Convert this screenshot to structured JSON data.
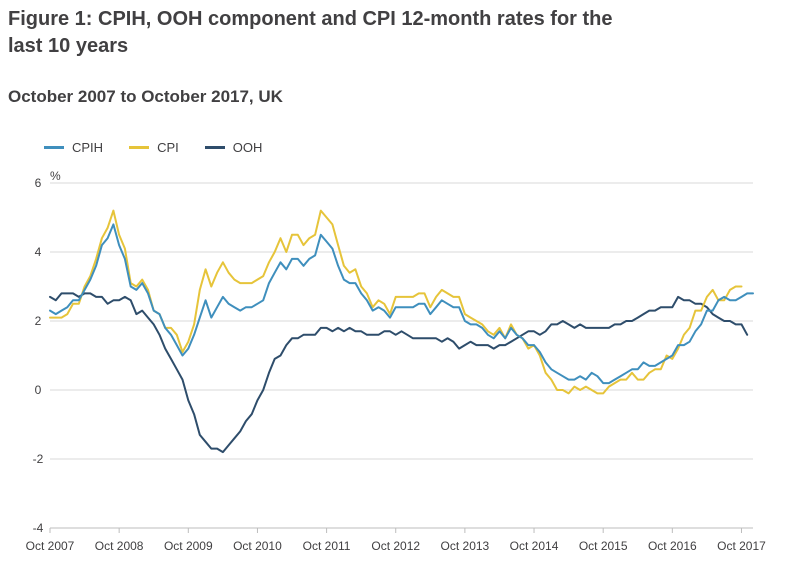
{
  "figure": {
    "title": "Figure 1: CPIH, OOH component and CPI 12-month rates for the last 10 years",
    "subtitle": "October 2007 to October 2017, UK"
  },
  "chart_data": {
    "type": "line",
    "title": "Figure 1: CPIH, OOH component and CPI 12-month rates for the last 10 years",
    "subtitle": "October 2007 to October 2017, UK",
    "ylabel": "%",
    "xlabel": "",
    "ylim": [
      -4,
      6
    ],
    "yticks": [
      -4,
      -2,
      0,
      2,
      4,
      6
    ],
    "xticks": [
      "Oct 2007",
      "Oct 2008",
      "Oct 2009",
      "Oct 2010",
      "Oct 2011",
      "Oct 2012",
      "Oct 2013",
      "Oct 2014",
      "Oct 2015",
      "Oct 2016",
      "Oct 2017"
    ],
    "x_start": "Oct 2007",
    "x_end": "Oct 2017",
    "x_frequency": "monthly",
    "grid": true,
    "legend_position": "top-left",
    "series": [
      {
        "name": "CPIH",
        "color": "#3f8fbd",
        "values": [
          2.3,
          2.2,
          2.3,
          2.4,
          2.6,
          2.6,
          2.9,
          3.2,
          3.6,
          4.2,
          4.4,
          4.8,
          4.2,
          3.8,
          3.0,
          2.9,
          3.1,
          2.8,
          2.3,
          2.2,
          1.8,
          1.6,
          1.3,
          1.0,
          1.2,
          1.6,
          2.1,
          2.6,
          2.1,
          2.4,
          2.7,
          2.5,
          2.4,
          2.3,
          2.4,
          2.4,
          2.5,
          2.6,
          3.1,
          3.4,
          3.7,
          3.5,
          3.8,
          3.8,
          3.6,
          3.8,
          3.9,
          4.5,
          4.3,
          4.1,
          3.6,
          3.2,
          3.1,
          3.1,
          2.8,
          2.6,
          2.3,
          2.4,
          2.3,
          2.1,
          2.4,
          2.4,
          2.4,
          2.4,
          2.5,
          2.5,
          2.2,
          2.4,
          2.6,
          2.5,
          2.4,
          2.4,
          2.0,
          1.9,
          1.9,
          1.8,
          1.6,
          1.5,
          1.7,
          1.5,
          1.8,
          1.6,
          1.5,
          1.3,
          1.3,
          1.1,
          0.8,
          0.6,
          0.5,
          0.4,
          0.3,
          0.3,
          0.4,
          0.3,
          0.5,
          0.4,
          0.2,
          0.2,
          0.3,
          0.4,
          0.5,
          0.6,
          0.6,
          0.8,
          0.7,
          0.7,
          0.8,
          0.9,
          1.0,
          1.3,
          1.3,
          1.4,
          1.7,
          1.9,
          2.3,
          2.3,
          2.6,
          2.7,
          2.6,
          2.6,
          2.7,
          2.8,
          2.8
        ]
      },
      {
        "name": "CPI",
        "color": "#e6c43a",
        "values": [
          2.1,
          2.1,
          2.1,
          2.2,
          2.5,
          2.5,
          3.0,
          3.3,
          3.8,
          4.4,
          4.7,
          5.2,
          4.5,
          4.1,
          3.1,
          3.0,
          3.2,
          2.9,
          2.3,
          2.2,
          1.8,
          1.8,
          1.6,
          1.1,
          1.4,
          1.9,
          2.9,
          3.5,
          3.0,
          3.4,
          3.7,
          3.4,
          3.2,
          3.1,
          3.1,
          3.1,
          3.2,
          3.3,
          3.7,
          4.0,
          4.4,
          4.0,
          4.5,
          4.5,
          4.2,
          4.4,
          4.5,
          5.2,
          5.0,
          4.8,
          4.2,
          3.6,
          3.4,
          3.5,
          3.0,
          2.8,
          2.4,
          2.6,
          2.5,
          2.2,
          2.7,
          2.7,
          2.7,
          2.7,
          2.8,
          2.8,
          2.4,
          2.7,
          2.9,
          2.8,
          2.7,
          2.7,
          2.2,
          2.1,
          2.0,
          1.9,
          1.7,
          1.6,
          1.8,
          1.5,
          1.9,
          1.6,
          1.5,
          1.2,
          1.3,
          1.0,
          0.5,
          0.3,
          0.0,
          0.0,
          -0.1,
          0.1,
          0.0,
          0.1,
          0.0,
          -0.1,
          -0.1,
          0.1,
          0.2,
          0.3,
          0.3,
          0.5,
          0.3,
          0.3,
          0.5,
          0.6,
          0.6,
          1.0,
          0.9,
          1.2,
          1.6,
          1.8,
          2.3,
          2.3,
          2.7,
          2.9,
          2.6,
          2.6,
          2.9,
          3.0,
          3.0
        ]
      },
      {
        "name": "OOH",
        "color": "#2e4d6b",
        "values": [
          2.7,
          2.6,
          2.8,
          2.8,
          2.8,
          2.7,
          2.8,
          2.8,
          2.7,
          2.7,
          2.5,
          2.6,
          2.6,
          2.7,
          2.6,
          2.2,
          2.3,
          2.1,
          1.9,
          1.6,
          1.2,
          0.9,
          0.6,
          0.3,
          -0.3,
          -0.7,
          -1.3,
          -1.5,
          -1.7,
          -1.7,
          -1.8,
          -1.6,
          -1.4,
          -1.2,
          -0.9,
          -0.7,
          -0.3,
          0.0,
          0.5,
          0.9,
          1.0,
          1.3,
          1.5,
          1.5,
          1.6,
          1.6,
          1.6,
          1.8,
          1.8,
          1.7,
          1.8,
          1.7,
          1.8,
          1.7,
          1.7,
          1.6,
          1.6,
          1.6,
          1.7,
          1.7,
          1.6,
          1.7,
          1.6,
          1.5,
          1.5,
          1.5,
          1.5,
          1.5,
          1.4,
          1.5,
          1.4,
          1.2,
          1.3,
          1.4,
          1.3,
          1.3,
          1.3,
          1.2,
          1.3,
          1.3,
          1.4,
          1.5,
          1.6,
          1.7,
          1.7,
          1.6,
          1.7,
          1.9,
          1.9,
          2.0,
          1.9,
          1.8,
          1.9,
          1.8,
          1.8,
          1.8,
          1.8,
          1.8,
          1.9,
          1.9,
          2.0,
          2.0,
          2.1,
          2.2,
          2.3,
          2.3,
          2.4,
          2.4,
          2.4,
          2.7,
          2.6,
          2.6,
          2.5,
          2.5,
          2.4,
          2.2,
          2.1,
          2.0,
          2.0,
          1.9,
          1.9,
          1.6
        ]
      }
    ]
  }
}
